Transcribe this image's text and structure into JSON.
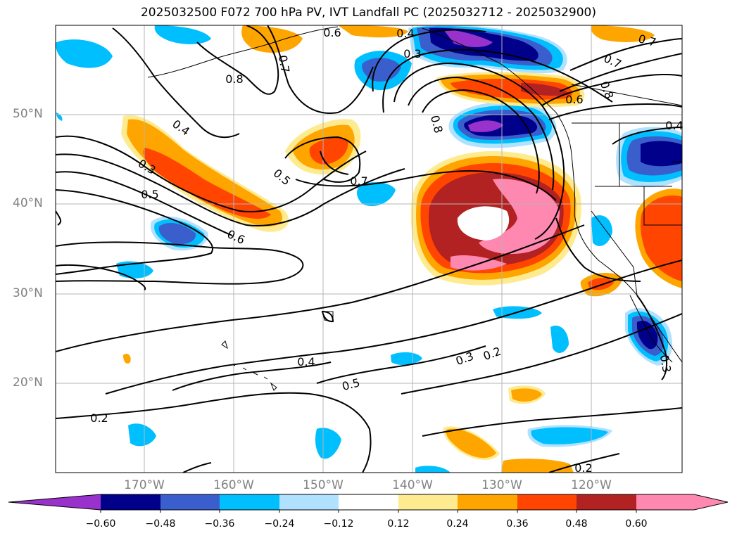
{
  "title": "2025032500 F072 700 hPa PV, IVT Landfall PC (2025032712 - 2025032900)",
  "map": {
    "lat_labels": [
      {
        "label": "50°N",
        "value": 50
      },
      {
        "label": "40°N",
        "value": 40
      },
      {
        "label": "30°N",
        "value": 30
      },
      {
        "label": "20°N",
        "value": 20
      }
    ],
    "lon_labels": [
      {
        "label": "170°W",
        "value": -170
      },
      {
        "label": "160°W",
        "value": -160
      },
      {
        "label": "150°W",
        "value": -150
      },
      {
        "label": "140°W",
        "value": -140
      },
      {
        "label": "130°W",
        "value": -130
      },
      {
        "label": "120°W",
        "value": -120
      }
    ],
    "contour_labels": [
      "0.6",
      "0.4",
      "0.3",
      "0.7",
      "0.8",
      "0.4",
      "0.3",
      "0.5",
      "0.6",
      "0.5",
      "0.7",
      "0.8",
      "0.7",
      "0.6",
      "0.4",
      "0.5",
      "0.3",
      "0.2",
      "0.3",
      "0.2",
      "0.2",
      "0.7",
      "0.8",
      "0.4"
    ]
  },
  "colorbar": {
    "colors": [
      "#9932cc",
      "#00008b",
      "#3a5fcd",
      "#00bfff",
      "#b0e2ff",
      "#ffffff",
      "#ffeb8f",
      "#ffa500",
      "#ff4500",
      "#b22222",
      "#ff88b0",
      "#ff88b0"
    ],
    "ticks": [
      "−0.60",
      "−0.48",
      "−0.36",
      "−0.24",
      "−0.12",
      "0.12",
      "0.24",
      "0.36",
      "0.48",
      "0.60"
    ]
  }
}
